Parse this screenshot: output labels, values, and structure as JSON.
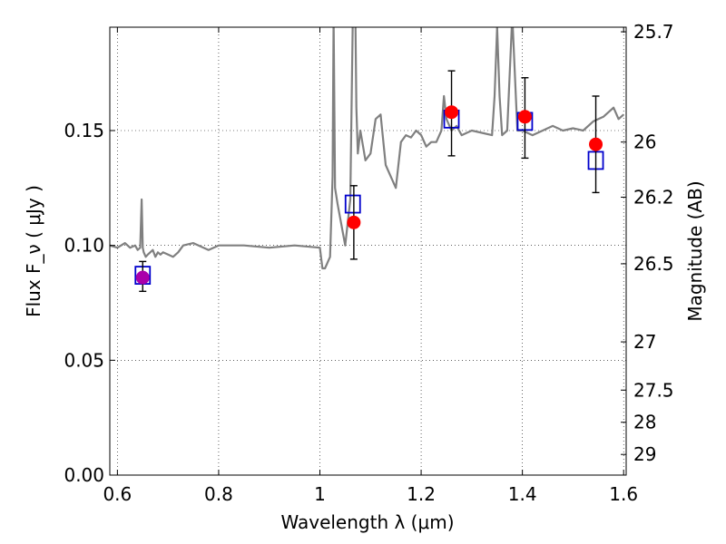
{
  "chart_data": {
    "type": "scatter",
    "title": "",
    "xlabel": "Wavelength  λ (μm)",
    "ylabel": "Flux  F_ν  ( μJy )",
    "ylabel_right": "Magnitude (AB)",
    "xlim": [
      0.585,
      1.605
    ],
    "ylim": [
      0.0,
      0.195
    ],
    "grid": true,
    "x_ticks": [
      0.6,
      0.8,
      1.0,
      1.2,
      1.4,
      1.6
    ],
    "x_tick_labels": [
      "0.6",
      "0.8",
      "1",
      "1.2",
      "1.4",
      "1.6"
    ],
    "y_ticks": [
      0.0,
      0.05,
      0.1,
      0.15
    ],
    "y_tick_labels": [
      "0.00",
      "0.05",
      "0.10",
      "0.15"
    ],
    "right_ticks": [
      {
        "label": "25.7",
        "flux": 0.193
      },
      {
        "label": "26",
        "flux": 0.145
      },
      {
        "label": "26.2",
        "flux": 0.121
      },
      {
        "label": "26.5",
        "flux": 0.092
      },
      {
        "label": "27",
        "flux": 0.058
      },
      {
        "label": "27.5",
        "flux": 0.037
      },
      {
        "label": "28",
        "flux": 0.023
      },
      {
        "label": "29",
        "flux": 0.009
      }
    ],
    "series": [
      {
        "type": "line",
        "color": "#808080",
        "x": [
          0.585,
          0.6,
          0.615,
          0.625,
          0.635,
          0.64,
          0.645,
          0.648,
          0.65,
          0.652,
          0.656,
          0.66,
          0.67,
          0.675,
          0.68,
          0.685,
          0.69,
          0.7,
          0.71,
          0.72,
          0.73,
          0.75,
          0.78,
          0.8,
          0.85,
          0.9,
          0.95,
          1.0,
          1.005,
          1.01,
          1.02,
          1.025,
          1.027,
          1.03,
          1.035,
          1.05,
          1.06,
          1.065,
          1.07,
          1.072,
          1.075,
          1.08,
          1.09,
          1.1,
          1.11,
          1.12,
          1.13,
          1.14,
          1.15,
          1.16,
          1.17,
          1.18,
          1.19,
          1.2,
          1.21,
          1.22,
          1.23,
          1.24,
          1.245,
          1.25,
          1.26,
          1.27,
          1.28,
          1.3,
          1.32,
          1.34,
          1.345,
          1.35,
          1.355,
          1.36,
          1.37,
          1.38,
          1.39,
          1.4,
          1.42,
          1.44,
          1.46,
          1.48,
          1.5,
          1.52,
          1.54,
          1.56,
          1.58,
          1.59,
          1.6
        ],
        "y": [
          0.1,
          0.099,
          0.101,
          0.099,
          0.1,
          0.098,
          0.099,
          0.12,
          0.099,
          0.097,
          0.095,
          0.096,
          0.098,
          0.095,
          0.097,
          0.096,
          0.097,
          0.096,
          0.095,
          0.097,
          0.1,
          0.101,
          0.098,
          0.1,
          0.1,
          0.099,
          0.1,
          0.099,
          0.09,
          0.09,
          0.095,
          0.13,
          0.2,
          0.125,
          0.118,
          0.1,
          0.12,
          0.2,
          0.2,
          0.16,
          0.14,
          0.15,
          0.137,
          0.14,
          0.155,
          0.157,
          0.135,
          0.13,
          0.125,
          0.145,
          0.148,
          0.147,
          0.15,
          0.148,
          0.143,
          0.145,
          0.145,
          0.15,
          0.165,
          0.155,
          0.15,
          0.152,
          0.148,
          0.15,
          0.149,
          0.148,
          0.165,
          0.195,
          0.165,
          0.148,
          0.15,
          0.2,
          0.15,
          0.15,
          0.148,
          0.15,
          0.152,
          0.15,
          0.151,
          0.15,
          0.154,
          0.156,
          0.16,
          0.155,
          0.157
        ]
      },
      {
        "type": "scatter-square",
        "color": "#0000cc",
        "x": [
          0.65,
          1.065,
          1.26,
          1.405,
          1.545
        ],
        "y": [
          0.087,
          0.118,
          0.155,
          0.154,
          0.137
        ]
      },
      {
        "type": "scatter-circle",
        "color": "#ff0000",
        "highlight_color": "#aa00aa",
        "x": [
          0.65,
          1.067,
          1.26,
          1.405,
          1.545
        ],
        "y": [
          0.086,
          0.11,
          0.158,
          0.156,
          0.144
        ],
        "yerr_low": [
          0.08,
          0.094,
          0.139,
          0.138,
          0.123
        ],
        "yerr_high": [
          0.093,
          0.126,
          0.176,
          0.173,
          0.165
        ]
      }
    ]
  }
}
